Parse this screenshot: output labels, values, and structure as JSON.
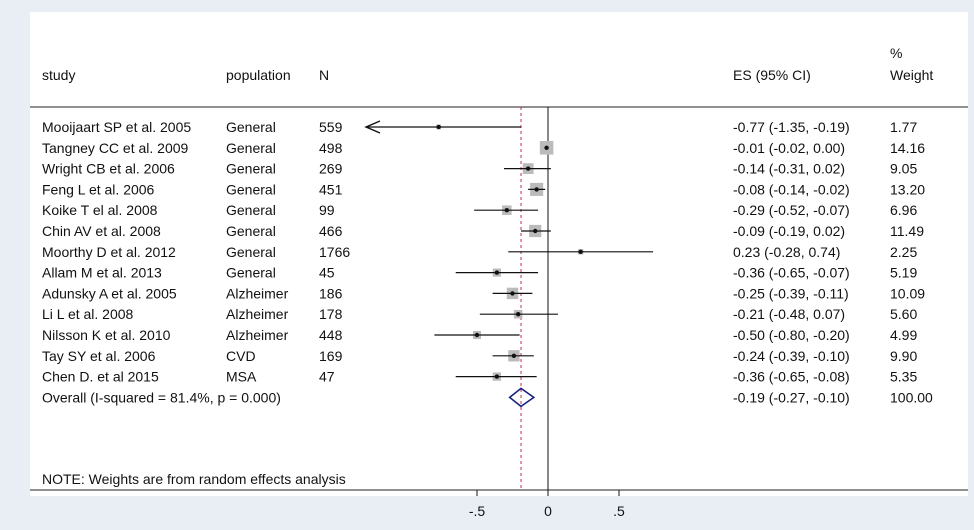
{
  "chart_data": {
    "type": "forest",
    "headers": {
      "study": "study",
      "population": "population",
      "n": "N",
      "es": "ES (95% CI)",
      "weight_line1": "%",
      "weight_line2": "Weight"
    },
    "studies": [
      {
        "study": "Mooijaart SP et al. 2005",
        "population": "General",
        "n": "559",
        "es": -0.77,
        "lo": -1.35,
        "hi": -0.19,
        "es_text": "-0.77 (-1.35, -0.19)",
        "weight": 1.77,
        "weight_text": "1.77",
        "left_arrow": true
      },
      {
        "study": "Tangney CC et al. 2009",
        "population": "General",
        "n": "498",
        "es": -0.01,
        "lo": -0.02,
        "hi": 0.0,
        "es_text": "-0.01 (-0.02, 0.00)",
        "weight": 14.16,
        "weight_text": "14.16"
      },
      {
        "study": "Wright CB et al. 2006",
        "population": "General",
        "n": "269",
        "es": -0.14,
        "lo": -0.31,
        "hi": 0.02,
        "es_text": "-0.14 (-0.31, 0.02)",
        "weight": 9.05,
        "weight_text": "9.05"
      },
      {
        "study": "Feng L et al. 2006",
        "population": "General",
        "n": "451",
        "es": -0.08,
        "lo": -0.14,
        "hi": -0.02,
        "es_text": "-0.08 (-0.14, -0.02)",
        "weight": 13.2,
        "weight_text": "13.20"
      },
      {
        "study": "Koike T el al. 2008",
        "population": "General",
        "n": "99",
        "es": -0.29,
        "lo": -0.52,
        "hi": -0.07,
        "es_text": "-0.29 (-0.52, -0.07)",
        "weight": 6.96,
        "weight_text": "6.96"
      },
      {
        "study": "Chin AV et al. 2008",
        "population": "General",
        "n": "466",
        "es": -0.09,
        "lo": -0.19,
        "hi": 0.02,
        "es_text": "-0.09 (-0.19, 0.02)",
        "weight": 11.49,
        "weight_text": "11.49"
      },
      {
        "study": "Moorthy D et al. 2012",
        "population": "General",
        "n": "1766",
        "es": 0.23,
        "lo": -0.28,
        "hi": 0.74,
        "es_text": "0.23 (-0.28, 0.74)",
        "weight": 2.25,
        "weight_text": "2.25"
      },
      {
        "study": "Allam M et al. 2013",
        "population": "General",
        "n": "45",
        "es": -0.36,
        "lo": -0.65,
        "hi": -0.07,
        "es_text": "-0.36 (-0.65, -0.07)",
        "weight": 5.19,
        "weight_text": "5.19"
      },
      {
        "study": "Adunsky A et al. 2005",
        "population": "Alzheimer",
        "n": "186",
        "es": -0.25,
        "lo": -0.39,
        "hi": -0.11,
        "es_text": "-0.25 (-0.39, -0.11)",
        "weight": 10.09,
        "weight_text": "10.09"
      },
      {
        "study": "Li L et al. 2008",
        "population": "Alzheimer",
        "n": "178",
        "es": -0.21,
        "lo": -0.48,
        "hi": 0.07,
        "es_text": "-0.21 (-0.48, 0.07)",
        "weight": 5.6,
        "weight_text": "5.60"
      },
      {
        "study": "Nilsson K et al. 2010",
        "population": "Alzheimer",
        "n": "448",
        "es": -0.5,
        "lo": -0.8,
        "hi": -0.2,
        "es_text": "-0.50 (-0.80, -0.20)",
        "weight": 4.99,
        "weight_text": "4.99"
      },
      {
        "study": "Tay SY et al. 2006",
        "population": "CVD",
        "n": "169",
        "es": -0.24,
        "lo": -0.39,
        "hi": -0.1,
        "es_text": "-0.24 (-0.39, -0.10)",
        "weight": 9.9,
        "weight_text": "9.90"
      },
      {
        "study": "Chen D. et al 2015",
        "population": "MSA",
        "n": "47",
        "es": -0.36,
        "lo": -0.65,
        "hi": -0.08,
        "es_text": "-0.36 (-0.65, -0.08)",
        "weight": 5.35,
        "weight_text": "5.35"
      }
    ],
    "overall": {
      "label": "Overall  (I-squared = 81.4%, p = 0.000)",
      "es": -0.19,
      "lo": -0.27,
      "hi": -0.1,
      "es_text": "-0.19 (-0.27, -0.10)",
      "weight_text": "100.00"
    },
    "note": "NOTE: Weights are from random effects analysis",
    "x_ticks": [
      {
        "value": -0.5,
        "label": "-.5"
      },
      {
        "value": 0,
        "label": "0"
      },
      {
        "value": 0.5,
        "label": ".5"
      }
    ],
    "xlim": [
      -0.6,
      0.7
    ],
    "null_line": 0,
    "colors": {
      "background": "#e8eef4",
      "panel": "#ffffff",
      "weight_box": "#bbbbbb",
      "overall_line": "#c0304a",
      "diamond": "#1a237e",
      "ink": "#111111"
    }
  }
}
